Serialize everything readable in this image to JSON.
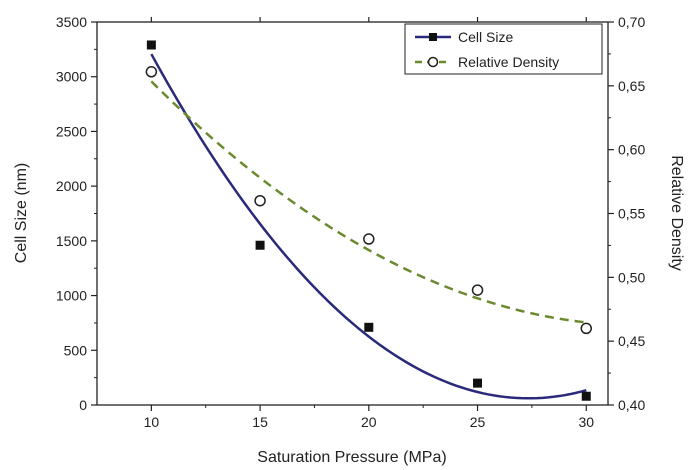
{
  "chart_data": {
    "type": "scatter",
    "xlabel": "Saturation Pressure (MPa)",
    "ylabel": "Cell Size (nm)",
    "y2label": "Relative Density",
    "xlim": [
      7.5,
      31
    ],
    "ylim": [
      0,
      3500
    ],
    "y2lim": [
      0.4,
      0.7
    ],
    "x_ticks": [
      "10",
      "15",
      "20",
      "25",
      "30"
    ],
    "y_ticks": [
      "0",
      "500",
      "1000",
      "1500",
      "2000",
      "2500",
      "3000",
      "3500"
    ],
    "y2_ticks": [
      "0,40",
      "0,45",
      "0,50",
      "0,55",
      "0,60",
      "0,65",
      "0,70"
    ],
    "legend_position": "top-right",
    "series": [
      {
        "name": "Cell Size",
        "axis": "left",
        "marker": "square",
        "color": "#2a2a7a",
        "line_style": "solid",
        "x": [
          10,
          15,
          20,
          25,
          30
        ],
        "values": [
          3290,
          1460,
          710,
          200,
          80
        ]
      },
      {
        "name": "Relative Density",
        "axis": "right",
        "marker": "circle",
        "color": "#6b8a2f",
        "line_style": "dashed",
        "x": [
          10,
          15,
          20,
          25,
          30
        ],
        "values": [
          0.661,
          0.56,
          0.53,
          0.49,
          0.46
        ]
      }
    ]
  }
}
